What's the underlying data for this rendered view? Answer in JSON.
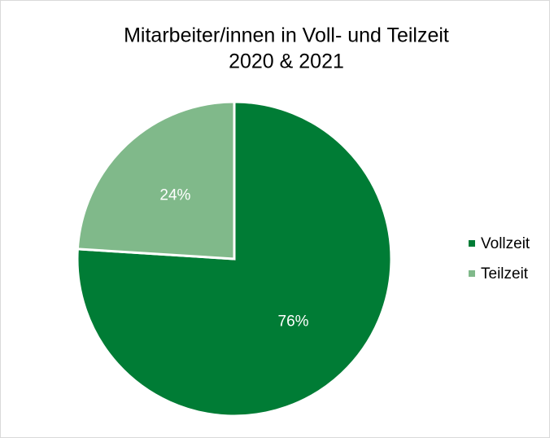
{
  "chart_data": {
    "type": "pie",
    "title": [
      "Mitarbeiter/innen in Voll- und Teilzeit",
      "2020 & 2021"
    ],
    "categories": [
      "Vollzeit",
      "Teilzeit"
    ],
    "values": [
      76,
      24
    ],
    "value_labels": [
      "76%",
      "24%"
    ],
    "colors": [
      "#007c35",
      "#80b98a"
    ],
    "legend": "right"
  }
}
